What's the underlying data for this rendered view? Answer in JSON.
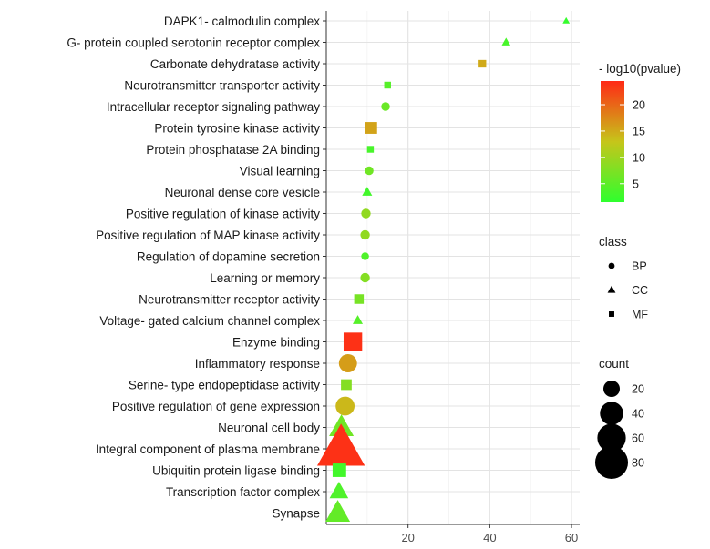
{
  "chart_data": {
    "type": "scatter",
    "title": "",
    "xlabel": "",
    "ylabel": "",
    "xlim": [
      0,
      62
    ],
    "xticks": [
      20,
      40,
      60
    ],
    "grid": true,
    "categories": [
      "DAPK1- calmodulin complex",
      "G- protein coupled serotonin receptor complex",
      "Carbonate dehydratase activity",
      "Neurotransmitter transporter activity",
      "Intracellular receptor signaling pathway",
      "Protein tyrosine kinase activity",
      "Protein phosphatase 2A binding",
      "Visual learning",
      "Neuronal dense core vesicle",
      "Positive regulation of kinase activity",
      "Positive regulation of MAP kinase activity",
      "Regulation of dopamine secretion",
      "Learning or memory",
      "Neurotransmitter receptor activity",
      "Voltage- gated calcium channel complex",
      "Enzyme binding",
      "Inflammatory response",
      "Serine- type endopeptidase activity",
      "Positive regulation of gene expression",
      "Neuronal cell body",
      "Integral component of plasma membrane",
      "Ubiquitin protein ligase binding",
      "Transcription factor complex",
      "Synapse"
    ],
    "points": [
      {
        "term": "DAPK1- calmodulin complex",
        "x": 58.7,
        "class": "CC",
        "count": 2,
        "neglog10p": 2.0
      },
      {
        "term": "G- protein coupled serotonin receptor complex",
        "x": 44.0,
        "class": "CC",
        "count": 3,
        "neglog10p": 3.5
      },
      {
        "term": "Carbonate dehydratase activity",
        "x": 38.2,
        "class": "MF",
        "count": 5,
        "neglog10p": 15.0
      },
      {
        "term": "Neurotransmitter transporter activity",
        "x": 15.0,
        "class": "MF",
        "count": 4,
        "neglog10p": 4.5
      },
      {
        "term": "Intracellular receptor signaling pathway",
        "x": 14.5,
        "class": "BP",
        "count": 5,
        "neglog10p": 6.0
      },
      {
        "term": "Protein tyrosine kinase activity",
        "x": 11.0,
        "class": "MF",
        "count": 12,
        "neglog10p": 15.5
      },
      {
        "term": "Protein phosphatase 2A binding",
        "x": 10.8,
        "class": "MF",
        "count": 4,
        "neglog10p": 3.5
      },
      {
        "term": "Visual learning",
        "x": 10.5,
        "class": "BP",
        "count": 5,
        "neglog10p": 6.5
      },
      {
        "term": "Neuronal dense core vesicle",
        "x": 10.0,
        "class": "CC",
        "count": 4,
        "neglog10p": 3.0
      },
      {
        "term": "Positive regulation of kinase activity",
        "x": 9.7,
        "class": "BP",
        "count": 6,
        "neglog10p": 9.0
      },
      {
        "term": "Positive regulation of MAP kinase activity",
        "x": 9.5,
        "class": "BP",
        "count": 6,
        "neglog10p": 9.0
      },
      {
        "term": "Regulation of dopamine secretion",
        "x": 9.5,
        "class": "BP",
        "count": 4,
        "neglog10p": 4.0
      },
      {
        "term": "Learning or memory",
        "x": 9.5,
        "class": "BP",
        "count": 6,
        "neglog10p": 8.0
      },
      {
        "term": "Neurotransmitter receptor activity",
        "x": 8.0,
        "class": "MF",
        "count": 8,
        "neglog10p": 7.0
      },
      {
        "term": "Voltage- gated calcium channel complex",
        "x": 7.7,
        "class": "CC",
        "count": 4,
        "neglog10p": 4.5
      },
      {
        "term": "Enzyme binding",
        "x": 6.5,
        "class": "MF",
        "count": 30,
        "neglog10p": 24.0
      },
      {
        "term": "Inflammatory response",
        "x": 5.3,
        "class": "BP",
        "count": 22,
        "neglog10p": 16.0
      },
      {
        "term": "Serine- type endopeptidase activity",
        "x": 4.9,
        "class": "MF",
        "count": 10,
        "neglog10p": 8.0
      },
      {
        "term": "Positive regulation of gene expression",
        "x": 4.6,
        "class": "BP",
        "count": 24,
        "neglog10p": 14.0
      },
      {
        "term": "Neuronal cell body",
        "x": 3.7,
        "class": "CC",
        "count": 24,
        "neglog10p": 6.5
      },
      {
        "term": "Integral component of plasma membrane",
        "x": 3.6,
        "class": "CC",
        "count": 90,
        "neglog10p": 24.0
      },
      {
        "term": "Ubiquitin protein ligase binding",
        "x": 3.2,
        "class": "MF",
        "count": 16,
        "neglog10p": 3.0
      },
      {
        "term": "Transcription factor complex",
        "x": 3.1,
        "class": "CC",
        "count": 14,
        "neglog10p": 4.0
      },
      {
        "term": "Synapse",
        "x": 2.8,
        "class": "CC",
        "count": 24,
        "neglog10p": 5.5
      }
    ],
    "color_scale": {
      "title": "- log10(pvalue)",
      "min": 1.5,
      "max": 24.5,
      "ticks": [
        5,
        10,
        15,
        20
      ],
      "low_color": "#2EFF2E",
      "mid_color": "#C6C51A",
      "high_color": "#FF2A16"
    },
    "shape_legend": {
      "title": "class",
      "entries": [
        {
          "label": "BP",
          "shape": "circle"
        },
        {
          "label": "CC",
          "shape": "triangle"
        },
        {
          "label": "MF",
          "shape": "square"
        }
      ]
    },
    "size_legend": {
      "title": "count",
      "entries": [
        {
          "label": "20",
          "value": 20
        },
        {
          "label": "40",
          "value": 40
        },
        {
          "label": "60",
          "value": 60
        },
        {
          "label": "80",
          "value": 80
        }
      ]
    }
  }
}
